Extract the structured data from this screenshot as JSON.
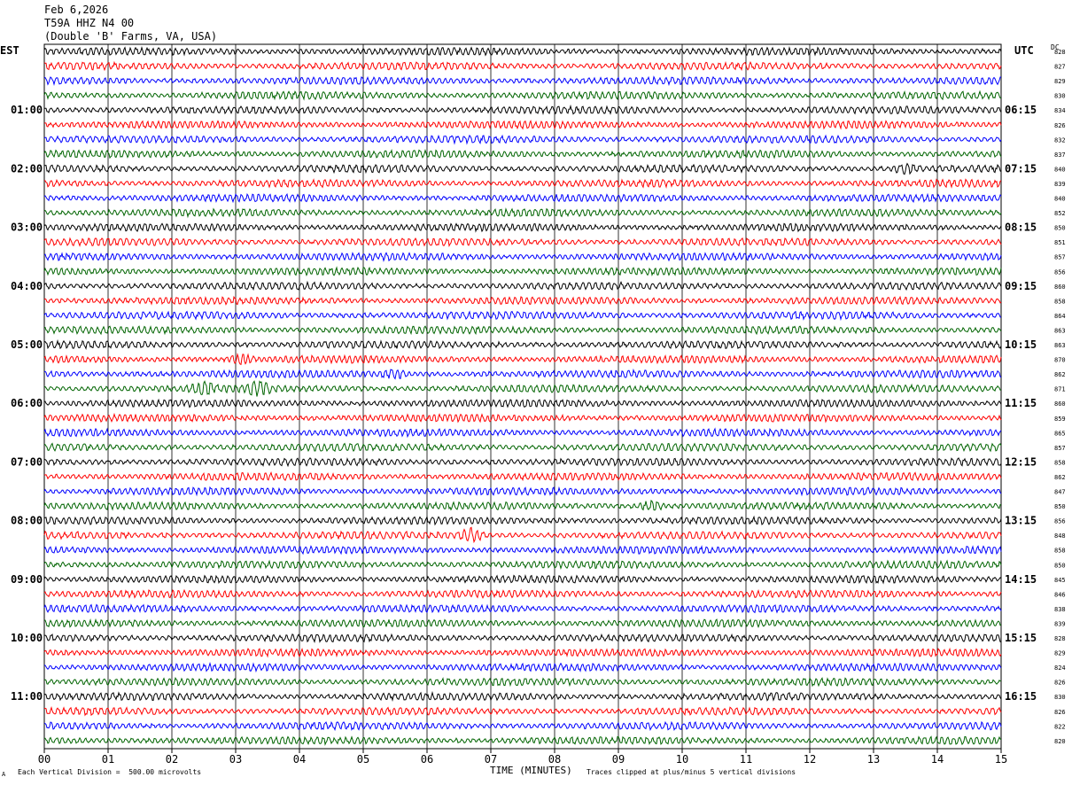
{
  "header": {
    "date": "Feb 6,2026",
    "station": "T59A HHZ N4 00",
    "location": "(Double 'B' Farms, VA, USA)"
  },
  "timezones": {
    "left": "EST",
    "right": "UTC"
  },
  "dc_label": "DC",
  "footer": {
    "scale_note": "Each Vertical Division =  500.00 microvolts",
    "x_axis_label": "TIME (MINUTES)",
    "clip_note": "Traces clipped at plus/minus 5 vertical divisions",
    "corner_mark": "A"
  },
  "colors": {
    "trace_cycle": [
      "#000000",
      "#ff0000",
      "#0000ff",
      "#006400"
    ],
    "grid": "#000000"
  },
  "chart_data": {
    "type": "line",
    "description_type": "helicorder",
    "x": {
      "label": "TIME (MINUTES)",
      "range": [
        0,
        15
      ],
      "tick_labels": [
        "00",
        "01",
        "02",
        "03",
        "04",
        "05",
        "06",
        "07",
        "08",
        "09",
        "10",
        "11",
        "12",
        "13",
        "14",
        "15"
      ]
    },
    "left_hour_labels": [
      "01:00",
      "02:00",
      "03:00",
      "04:00",
      "05:00",
      "06:00",
      "07:00",
      "08:00",
      "09:00",
      "10:00",
      "11:00"
    ],
    "right_hour_labels": [
      "06:15",
      "07:15",
      "08:15",
      "09:15",
      "10:15",
      "11:15",
      "12:15",
      "13:15",
      "14:15",
      "15:15",
      "16:15"
    ],
    "trace_count": 48,
    "dc_offsets": [
      828,
      827,
      829,
      830,
      834,
      826,
      832,
      837,
      840,
      839,
      840,
      852,
      850,
      851,
      857,
      856,
      860,
      858,
      864,
      863,
      863,
      870,
      862,
      871,
      860,
      859,
      865,
      857,
      858,
      862,
      847,
      850,
      856,
      848,
      858,
      850,
      845,
      846,
      838,
      839,
      828,
      829,
      824,
      826,
      830,
      826,
      822,
      820
    ],
    "events": [
      {
        "trace": 21,
        "minute": 3.1,
        "amplitude": 1.2
      },
      {
        "trace": 23,
        "minute": 2.5,
        "amplitude": 1.3
      },
      {
        "trace": 23,
        "minute": 3.35,
        "amplitude": 1.8
      },
      {
        "trace": 33,
        "minute": 6.7,
        "amplitude": 1.9
      },
      {
        "trace": 31,
        "minute": 9.5,
        "amplitude": 1.3
      },
      {
        "trace": 8,
        "minute": 13.5,
        "amplitude": 1.2
      },
      {
        "trace": 22,
        "minute": 5.5,
        "amplitude": 1.1
      }
    ]
  }
}
